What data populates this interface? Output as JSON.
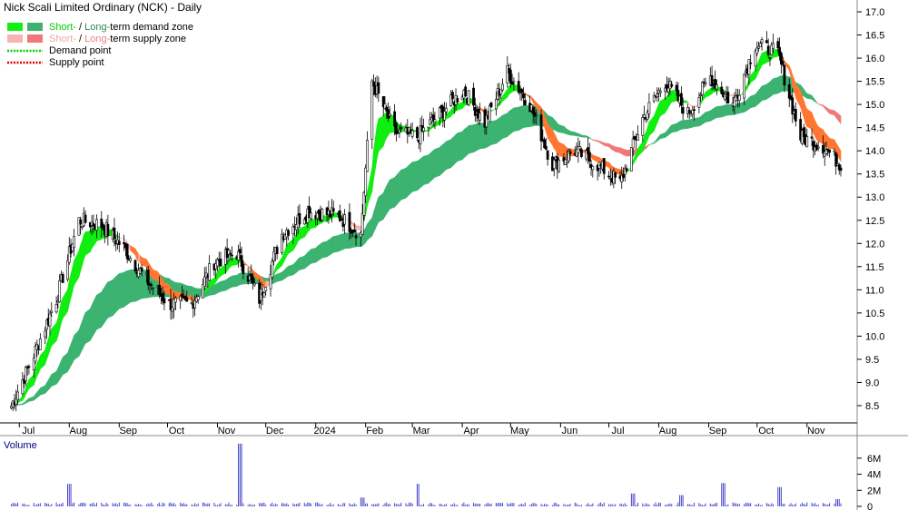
{
  "chart_data": [
    {
      "type": "candlestick",
      "title": "Nick Scali Limited Ordinary (NCK) - Daily",
      "ylim": [
        8.0,
        17.2
      ],
      "yticks": [
        "17.0",
        "16.5",
        "16.0",
        "15.5",
        "15.0",
        "14.5",
        "14.0",
        "13.5",
        "13.0",
        "12.5",
        "12.0",
        "11.5",
        "11.0",
        "10.5",
        "10.0",
        "9.5",
        "9.0",
        "8.5"
      ],
      "xticks": [
        "Jul",
        "Aug",
        "Sep",
        "Oct",
        "Nov",
        "Dec",
        "2024",
        "Feb",
        "Mar",
        "Apr",
        "May",
        "Jun",
        "Jul",
        "Aug",
        "Sep",
        "Oct",
        "Nov"
      ],
      "grid": false,
      "legend_position": "top-left",
      "legend": [
        {
          "label_parts": [
            {
              "text": "Short-",
              "color": "#00cc00"
            },
            {
              "text": " / ",
              "color": "#000000"
            },
            {
              "text": "Long-",
              "color": "#2e8b57"
            },
            {
              "text": "term demand zone",
              "color": "#000000"
            }
          ],
          "swatches": [
            "#11ee11",
            "#3cb371"
          ]
        },
        {
          "label_parts": [
            {
              "text": "Short-",
              "color": "#f4a6a6"
            },
            {
              "text": " / ",
              "color": "#000000"
            },
            {
              "text": "Long-",
              "color": "#f08080"
            },
            {
              "text": "term supply zone",
              "color": "#000000"
            }
          ],
          "swatches": [
            "#f8b4b4",
            "#f07878"
          ]
        },
        {
          "label_parts": [
            {
              "text": "Demand point",
              "color": "#000000"
            }
          ],
          "line_color": "#00cc00"
        },
        {
          "label_parts": [
            {
              "text": "Supply point",
              "color": "#000000"
            }
          ],
          "line_color": "#dd0000"
        }
      ],
      "colors": {
        "short_demand": "#11ee11",
        "long_demand": "#3cb371",
        "short_supply": "#f4b6b6",
        "long_supply": "#f07878",
        "overlap_supply": "#ff7733",
        "candle": "#000000"
      },
      "price_path_approx": [
        [
          "2023-06-26",
          8.5
        ],
        [
          "2023-07-10",
          9.6
        ],
        [
          "2023-07-24",
          10.8
        ],
        [
          "2023-08-07",
          12.5
        ],
        [
          "2023-08-21",
          12.4
        ],
        [
          "2023-09-04",
          11.9
        ],
        [
          "2023-09-18",
          11.2
        ],
        [
          "2023-10-02",
          10.7
        ],
        [
          "2023-10-16",
          10.7
        ],
        [
          "2023-10-30",
          11.6
        ],
        [
          "2023-11-13",
          11.8
        ],
        [
          "2023-11-27",
          10.8
        ],
        [
          "2023-12-11",
          12.2
        ],
        [
          "2023-12-27",
          12.7
        ],
        [
          "2024-01-15",
          12.6
        ],
        [
          "2024-01-29",
          12.2
        ],
        [
          "2024-02-05",
          15.5
        ],
        [
          "2024-02-19",
          14.4
        ],
        [
          "2024-03-04",
          14.3
        ],
        [
          "2024-03-18",
          14.8
        ],
        [
          "2024-04-02",
          15.3
        ],
        [
          "2024-04-15",
          14.6
        ],
        [
          "2024-04-29",
          15.7
        ],
        [
          "2024-05-13",
          15.0
        ],
        [
          "2024-05-27",
          13.7
        ],
        [
          "2024-06-10",
          14.0
        ],
        [
          "2024-06-24",
          13.7
        ],
        [
          "2024-07-08",
          13.3
        ],
        [
          "2024-07-22",
          14.7
        ],
        [
          "2024-08-05",
          15.5
        ],
        [
          "2024-08-19",
          14.8
        ],
        [
          "2024-09-02",
          15.6
        ],
        [
          "2024-09-16",
          15.0
        ],
        [
          "2024-09-30",
          16.3
        ],
        [
          "2024-10-14",
          16.1
        ],
        [
          "2024-10-28",
          14.3
        ],
        [
          "2024-11-11",
          14.1
        ],
        [
          "2024-11-22",
          13.7
        ]
      ]
    },
    {
      "type": "bar",
      "title": "Volume",
      "ylim": [
        0,
        8
      ],
      "yticks": [
        "6M",
        "4M",
        "2M",
        "0"
      ],
      "spikes_approx": [
        [
          "2023-08-01",
          2.8
        ],
        [
          "2023-11-15",
          7.8
        ],
        [
          "2024-01-30",
          1.1
        ],
        [
          "2024-03-04",
          2.8
        ],
        [
          "2024-07-16",
          1.6
        ],
        [
          "2024-08-15",
          1.4
        ],
        [
          "2024-09-10",
          2.9
        ],
        [
          "2024-10-15",
          2.4
        ],
        [
          "2024-11-20",
          0.9
        ]
      ]
    }
  ]
}
